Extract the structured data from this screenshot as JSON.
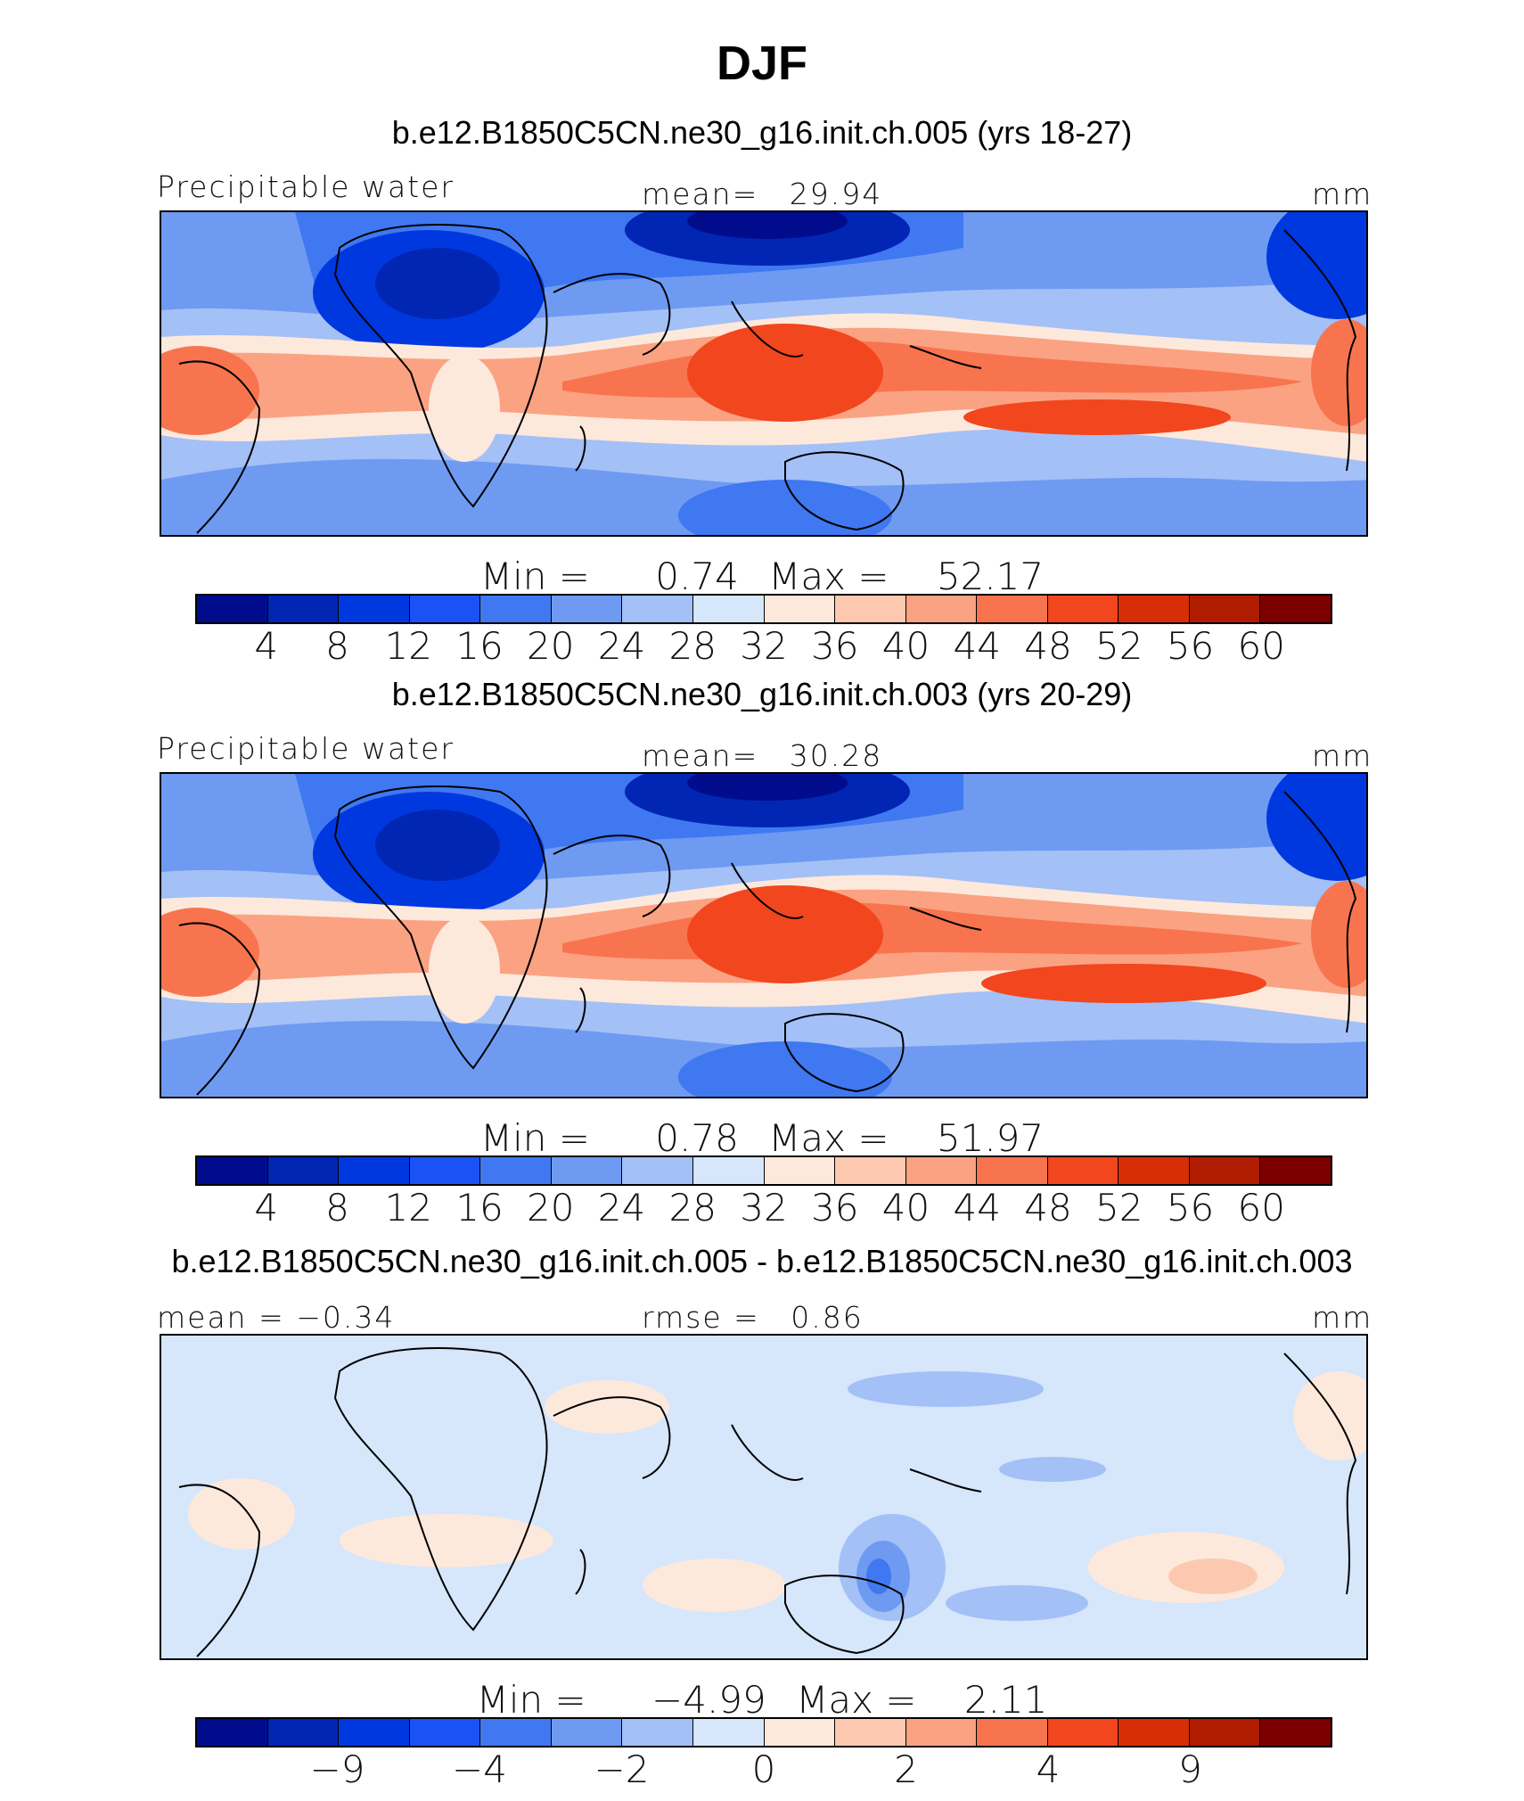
{
  "title": "DJF",
  "colors": {
    "palette": [
      "#000c8c",
      "#0026b3",
      "#0038e0",
      "#1a52f5",
      "#3f78f0",
      "#6f9af2",
      "#a3c0f7",
      "#d6e6fb",
      "#fde9dc",
      "#fcc9b0",
      "#fba282",
      "#f8744e",
      "#f2461e",
      "#d62f08",
      "#b01c00",
      "#7d0000"
    ],
    "frame": "#000000"
  },
  "panels": [
    {
      "title": "b.e12.B1850C5CN.ne30_g16.init.ch.005 (yrs 18-27)",
      "left_label": "Precipitable water",
      "center_label": "mean=",
      "center_value": "29.94",
      "units": "mm",
      "min_label": "Min =",
      "min_value": "0.74",
      "max_label": "Max =",
      "max_value": "52.17",
      "ticks": [
        "4",
        "8",
        "12",
        "16",
        "20",
        "24",
        "28",
        "32",
        "36",
        "40",
        "44",
        "48",
        "52",
        "56",
        "60"
      ]
    },
    {
      "title": "b.e12.B1850C5CN.ne30_g16.init.ch.003 (yrs 20-29)",
      "left_label": "Precipitable water",
      "center_label": "mean=",
      "center_value": "30.28",
      "units": "mm",
      "min_label": "Min =",
      "min_value": "0.78",
      "max_label": "Max =",
      "max_value": "51.97",
      "ticks": [
        "4",
        "8",
        "12",
        "16",
        "20",
        "24",
        "28",
        "32",
        "36",
        "40",
        "44",
        "48",
        "52",
        "56",
        "60"
      ]
    },
    {
      "title": "b.e12.B1850C5CN.ne30_g16.init.ch.005 - b.e12.B1850C5CN.ne30_g16.init.ch.003",
      "left_label": "mean = −0.34",
      "center_label": "rmse =",
      "center_value": "0.86",
      "units": "mm",
      "min_label": "Min =",
      "min_value": "−4.99",
      "max_label": "Max =",
      "max_value": "2.11",
      "ticks": [
        "",
        "−9",
        "",
        "−4",
        "",
        "−2",
        "",
        "0",
        "",
        "2",
        "",
        "4",
        "",
        "9",
        ""
      ]
    }
  ]
}
